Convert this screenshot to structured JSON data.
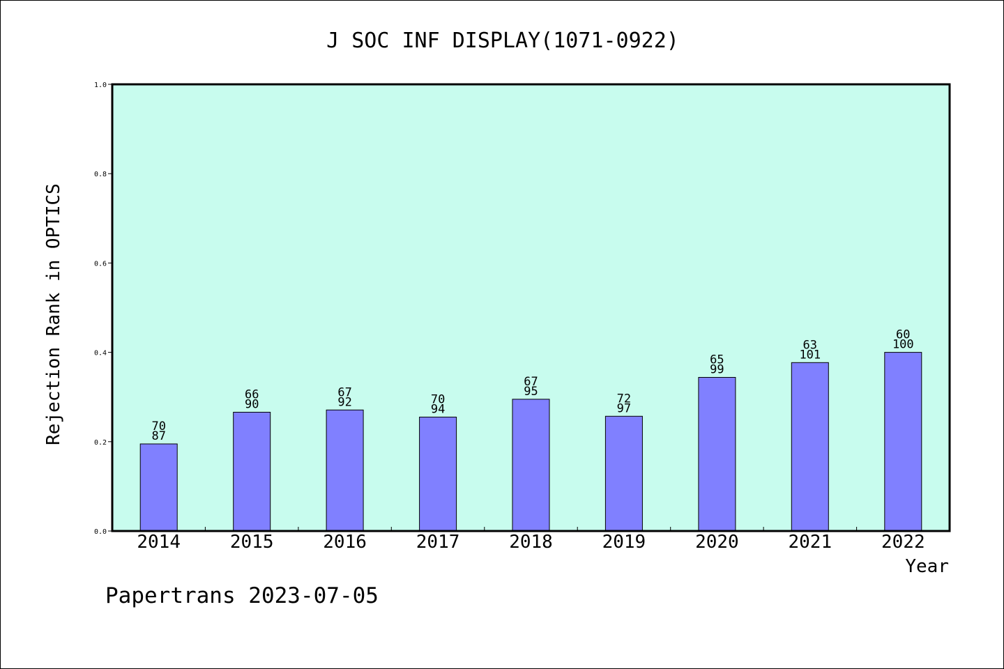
{
  "chart_data": {
    "type": "bar",
    "title": "J SOC INF DISPLAY(1071-0922)",
    "xlabel": "Year",
    "ylabel": "Rejection Rank in OPTICS",
    "footer": "Papertrans 2023-07-05",
    "ylim": [
      0,
      1.0
    ],
    "yticks": [
      "0.0",
      "0.2",
      "0.4",
      "0.6",
      "0.8",
      "1.0"
    ],
    "grid": false,
    "colors": {
      "plot_bg": "#c8fcee",
      "bar": "#8080ff",
      "bar_edge": "#000000"
    },
    "categories": [
      "2014",
      "2015",
      "2016",
      "2017",
      "2018",
      "2019",
      "2020",
      "2021",
      "2022"
    ],
    "values": [
      0.195,
      0.266,
      0.271,
      0.255,
      0.295,
      0.257,
      0.344,
      0.377,
      0.4
    ],
    "label_top": [
      "70",
      "66",
      "67",
      "70",
      "67",
      "72",
      "65",
      "63",
      "60"
    ],
    "label_bottom": [
      "87",
      "90",
      "92",
      "94",
      "95",
      "97",
      "99",
      "101",
      "100"
    ]
  }
}
